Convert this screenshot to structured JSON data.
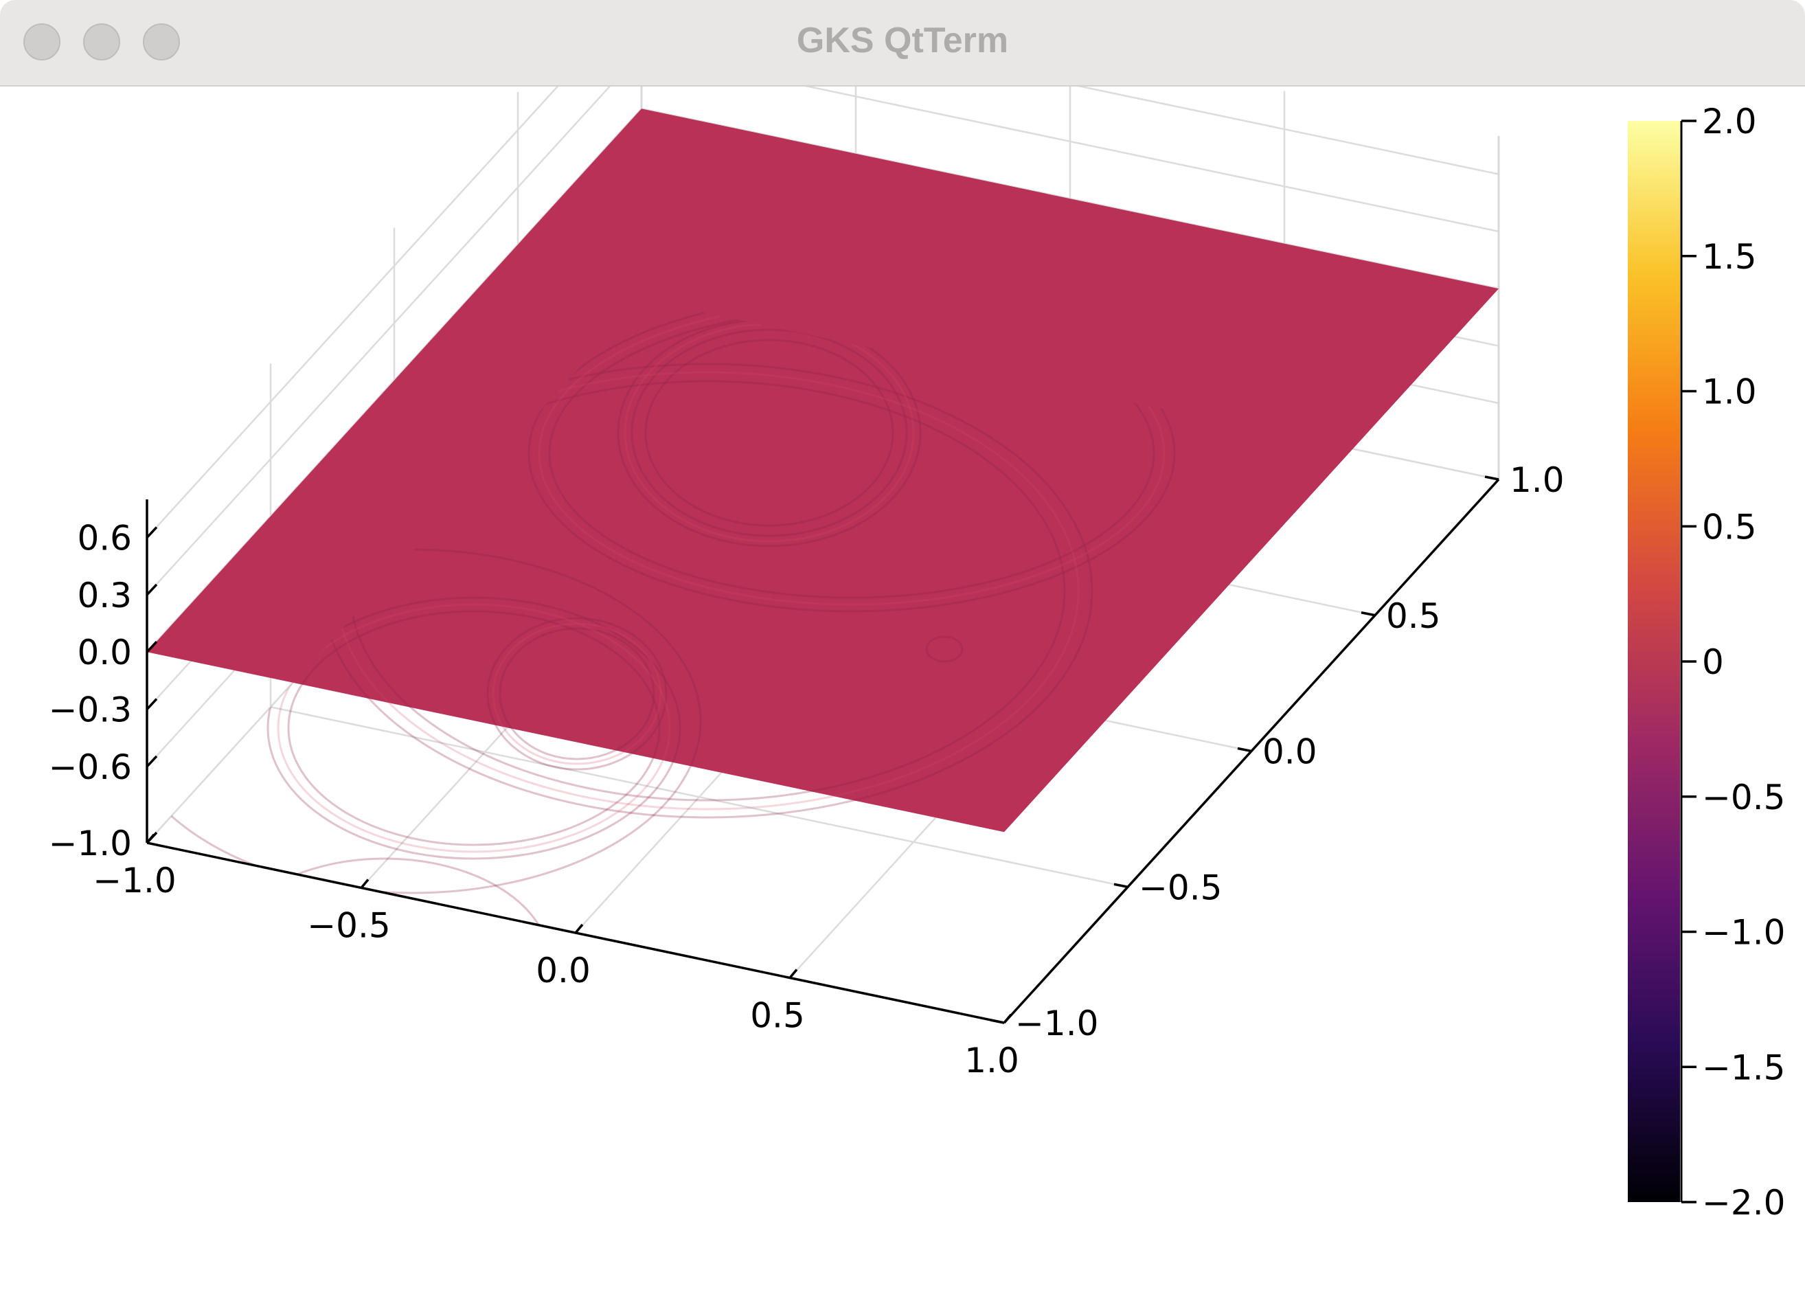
{
  "window": {
    "title": "GKS QtTerm",
    "controls": [
      "close",
      "minimize",
      "zoom"
    ]
  },
  "chart_data": {
    "type": "surface",
    "title": "",
    "xlabel": "",
    "ylabel": "",
    "zlabel": "",
    "grid": true,
    "x_ticks": [
      "−1.0",
      "−0.5",
      "0.0",
      "0.5",
      "1.0"
    ],
    "y_ticks": [
      "−1.0",
      "−0.5",
      "0.0",
      "0.5",
      "1.0"
    ],
    "z_ticks": [
      "−1.0",
      "−0.6",
      "−0.3",
      "0.0",
      "0.3",
      "0.6"
    ],
    "xlim": [
      -1.0,
      1.0
    ],
    "ylim": [
      -1.0,
      1.0
    ],
    "zlim": [
      -1.0,
      0.8
    ],
    "surface_level": 0.0,
    "surface_color": "#b93157",
    "colorbar": {
      "colormap": "inferno",
      "ticks": [
        "−2.0",
        "−1.5",
        "−1.0",
        "−0.5",
        "0",
        "0.5",
        "1.0",
        "1.5",
        "2.0"
      ],
      "range": [
        -2.0,
        2.0
      ],
      "position": "right"
    },
    "colormap_stops": [
      "#000004",
      "#280b54",
      "#65156e",
      "#9f2a63",
      "#d44842",
      "#f57d15",
      "#fac228",
      "#fcffa4"
    ]
  }
}
